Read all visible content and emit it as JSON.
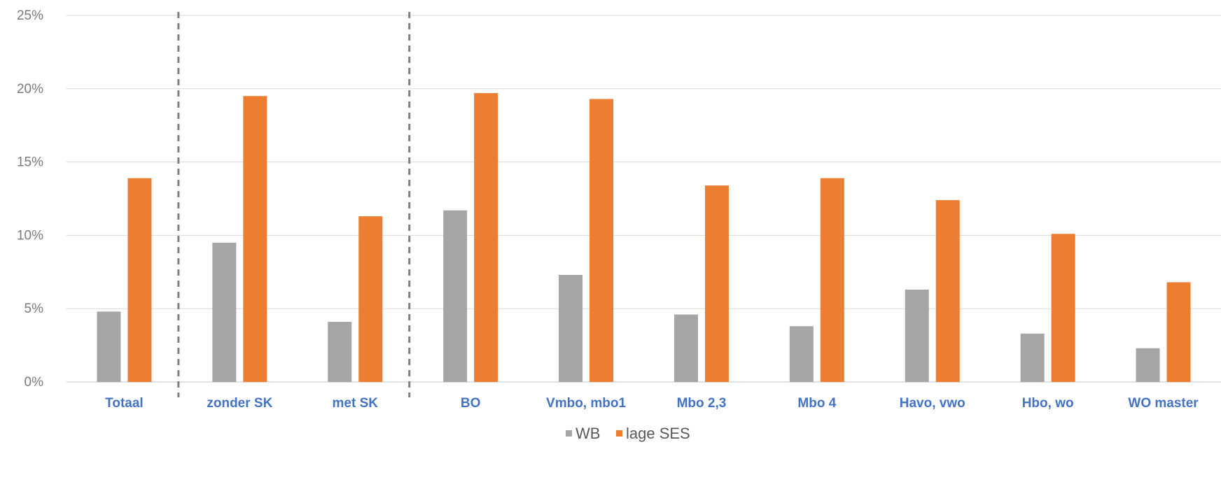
{
  "chart_data": {
    "type": "bar",
    "categories": [
      "Totaal",
      "zonder SK",
      "met SK",
      "BO",
      "Vmbo, mbo1",
      "Mbo 2,3",
      "Mbo 4",
      "Havo, vwo",
      "Hbo, wo",
      "WO master"
    ],
    "series": [
      {
        "name": "WB",
        "values": [
          4.8,
          9.5,
          4.1,
          11.7,
          7.3,
          4.6,
          3.8,
          6.3,
          3.3,
          2.3
        ],
        "color": "#a5a5a5"
      },
      {
        "name": "lage SES",
        "values": [
          13.9,
          19.5,
          11.3,
          19.7,
          19.3,
          13.4,
          13.9,
          12.4,
          10.1,
          6.8
        ],
        "color": "#ed7d31"
      }
    ],
    "ylim": [
      0,
      25
    ],
    "yticks": [
      "0%",
      "5%",
      "10%",
      "15%",
      "20%",
      "25%"
    ],
    "grid": true,
    "legend_position": "bottom",
    "group_separators_after": [
      "Totaal",
      "met SK"
    ],
    "colors": {
      "tick_label": "#4472c4",
      "axis_text": "#7a7a7a",
      "grid": "#d9d9d9",
      "separator": "#7f7f7f"
    }
  }
}
